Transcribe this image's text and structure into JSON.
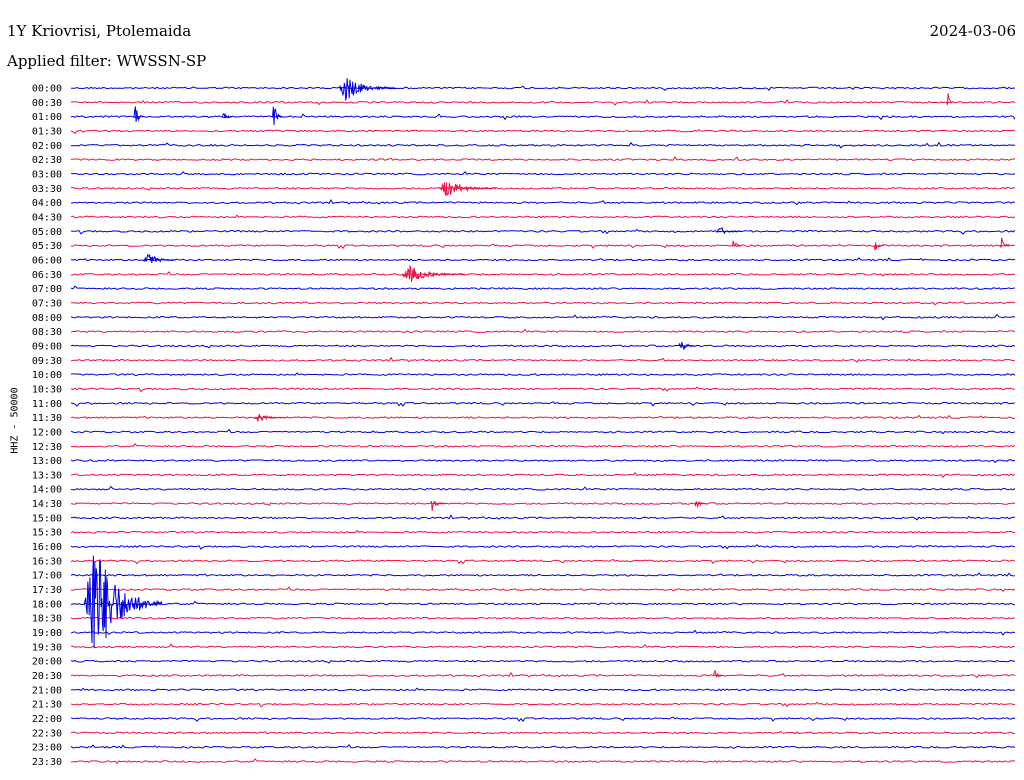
{
  "header": {
    "station": "1Y Kriovrisi, Ptolemaida",
    "date": "2024-03-06",
    "filter": "Applied filter: WWSSN-SP"
  },
  "chart_data": {
    "type": "line",
    "title": "1Y Kriovrisi, Ptolemaida",
    "ylabel": "HHZ - 50000",
    "row_labels": [
      "00:00",
      "00:30",
      "01:00",
      "01:30",
      "02:00",
      "02:30",
      "03:00",
      "03:30",
      "04:00",
      "04:30",
      "05:00",
      "05:30",
      "06:00",
      "06:30",
      "07:00",
      "07:30",
      "08:00",
      "08:30",
      "09:00",
      "09:30",
      "10:00",
      "10:30",
      "11:00",
      "11:30",
      "12:00",
      "12:30",
      "13:00",
      "13:30",
      "14:00",
      "14:30",
      "15:00",
      "15:30",
      "16:00",
      "16:30",
      "17:00",
      "17:30",
      "18:00",
      "18:30",
      "19:00",
      "19:30",
      "20:00",
      "20:30",
      "21:00",
      "21:30",
      "22:00",
      "22:30",
      "23:00",
      "23:30"
    ],
    "series_colors": [
      "#0000dd",
      "#ee1144"
    ],
    "grid": false,
    "events": [
      {
        "row": 0,
        "minute": 8.5,
        "amp": 14,
        "dur": 1.8
      },
      {
        "row": 2,
        "minute": 2.0,
        "amp": 16,
        "dur": 0.3
      },
      {
        "row": 2,
        "minute": 4.8,
        "amp": 12,
        "dur": 0.3
      },
      {
        "row": 2,
        "minute": 6.4,
        "amp": 16,
        "dur": 0.3
      },
      {
        "row": 1,
        "minute": 27.8,
        "amp": 14,
        "dur": 0.2
      },
      {
        "row": 7,
        "minute": 11.7,
        "amp": 9,
        "dur": 1.8
      },
      {
        "row": 10,
        "minute": 20.5,
        "amp": 5,
        "dur": 0.8
      },
      {
        "row": 11,
        "minute": 21.0,
        "amp": 8,
        "dur": 0.3
      },
      {
        "row": 11,
        "minute": 25.5,
        "amp": 8,
        "dur": 0.3
      },
      {
        "row": 11,
        "minute": 29.5,
        "amp": 11,
        "dur": 0.3
      },
      {
        "row": 12,
        "minute": 2.3,
        "amp": 8,
        "dur": 1.0
      },
      {
        "row": 13,
        "minute": 10.5,
        "amp": 9,
        "dur": 2.0
      },
      {
        "row": 18,
        "minute": 19.3,
        "amp": 10,
        "dur": 0.5
      },
      {
        "row": 23,
        "minute": 5.8,
        "amp": 5,
        "dur": 1.0
      },
      {
        "row": 29,
        "minute": 11.4,
        "amp": 8,
        "dur": 0.5
      },
      {
        "row": 29,
        "minute": 19.8,
        "amp": 6,
        "dur": 0.4
      },
      {
        "row": 36,
        "minute": 0.4,
        "amp": 70,
        "dur": 2.5
      },
      {
        "row": 41,
        "minute": 20.4,
        "amp": 6,
        "dur": 0.3
      }
    ]
  }
}
